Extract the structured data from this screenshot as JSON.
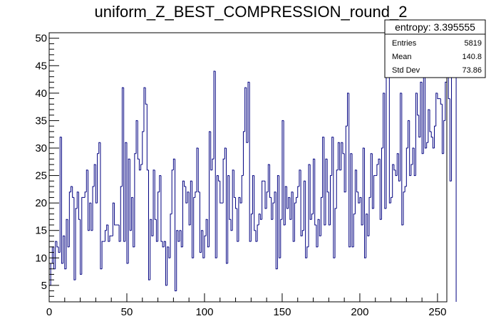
{
  "chart_data": {
    "type": "histogram",
    "title": "uniform_Z_BEST_COMPRESSION_round_2",
    "xlabel": "",
    "ylabel": "",
    "xlim": [
      0,
      256
    ],
    "ylim": [
      2,
      51
    ],
    "x_ticks": [
      0,
      50,
      100,
      150,
      200,
      250
    ],
    "y_ticks": [
      5,
      10,
      15,
      20,
      25,
      30,
      35,
      40,
      45,
      50
    ],
    "bin_width": 1,
    "line_color": "#000080",
    "grid": false,
    "legend": "none",
    "stats_box": {
      "title": "entropy: 3.395555",
      "placement": "top-right",
      "rows": [
        {
          "label": "Entries",
          "value": "5819"
        },
        {
          "label": "Mean",
          "value": "140.8"
        },
        {
          "label": "Std Dev",
          "value": "73.86"
        }
      ]
    },
    "values": [
      5,
      9,
      12,
      8,
      13,
      12,
      11,
      32,
      9,
      14,
      8,
      17,
      12,
      22,
      23,
      21,
      6,
      19,
      22,
      17,
      7,
      21,
      21,
      22,
      26,
      15,
      20,
      15,
      23,
      27,
      20,
      29,
      31,
      8,
      13,
      13,
      15,
      16,
      13,
      14,
      14,
      20,
      16,
      16,
      16,
      13,
      23,
      41,
      13,
      31,
      9,
      28,
      15,
      21,
      12,
      29,
      35,
      28,
      26,
      27,
      33,
      41,
      38,
      26,
      6,
      17,
      14,
      26,
      17,
      13,
      22,
      25,
      13,
      12,
      13,
      5,
      12,
      10,
      18,
      26,
      28,
      4,
      15,
      13,
      15,
      12,
      24,
      23,
      20,
      22,
      16,
      24,
      10,
      21,
      22,
      30,
      22,
      11,
      15,
      10,
      14,
      17,
      12,
      33,
      26,
      28,
      44,
      10,
      25,
      24,
      20,
      20,
      28,
      30,
      9,
      25,
      17,
      15,
      26,
      21,
      19,
      13,
      21,
      20,
      25,
      33,
      41,
      31,
      42,
      13,
      18,
      25,
      15,
      13,
      16,
      18,
      17,
      24,
      24,
      19,
      22,
      27,
      21,
      17,
      20,
      22,
      8,
      25,
      10,
      17,
      35,
      16,
      23,
      19,
      21,
      17,
      22,
      13,
      20,
      21,
      23,
      26,
      14,
      15,
      24,
      10,
      12,
      27,
      17,
      18,
      28,
      16,
      12,
      17,
      14,
      21,
      32,
      16,
      28,
      22,
      16,
      25,
      32,
      10,
      19,
      26,
      31,
      26,
      31,
      29,
      22,
      34,
      40,
      12,
      29,
      12,
      18,
      26,
      22,
      20,
      21,
      16,
      30,
      10,
      18,
      14,
      21,
      29,
      19,
      25,
      25,
      27,
      28,
      17,
      30,
      40,
      19,
      47,
      44,
      20,
      21,
      27,
      26,
      25,
      29,
      24,
      40,
      16,
      22,
      23,
      30,
      35,
      25,
      27,
      30,
      25,
      40,
      36,
      32,
      42,
      29,
      46,
      30,
      31,
      37,
      33,
      32,
      30,
      34,
      40,
      39,
      39,
      38,
      29,
      35,
      42,
      45,
      39,
      24,
      44,
      48,
      45
    ]
  }
}
